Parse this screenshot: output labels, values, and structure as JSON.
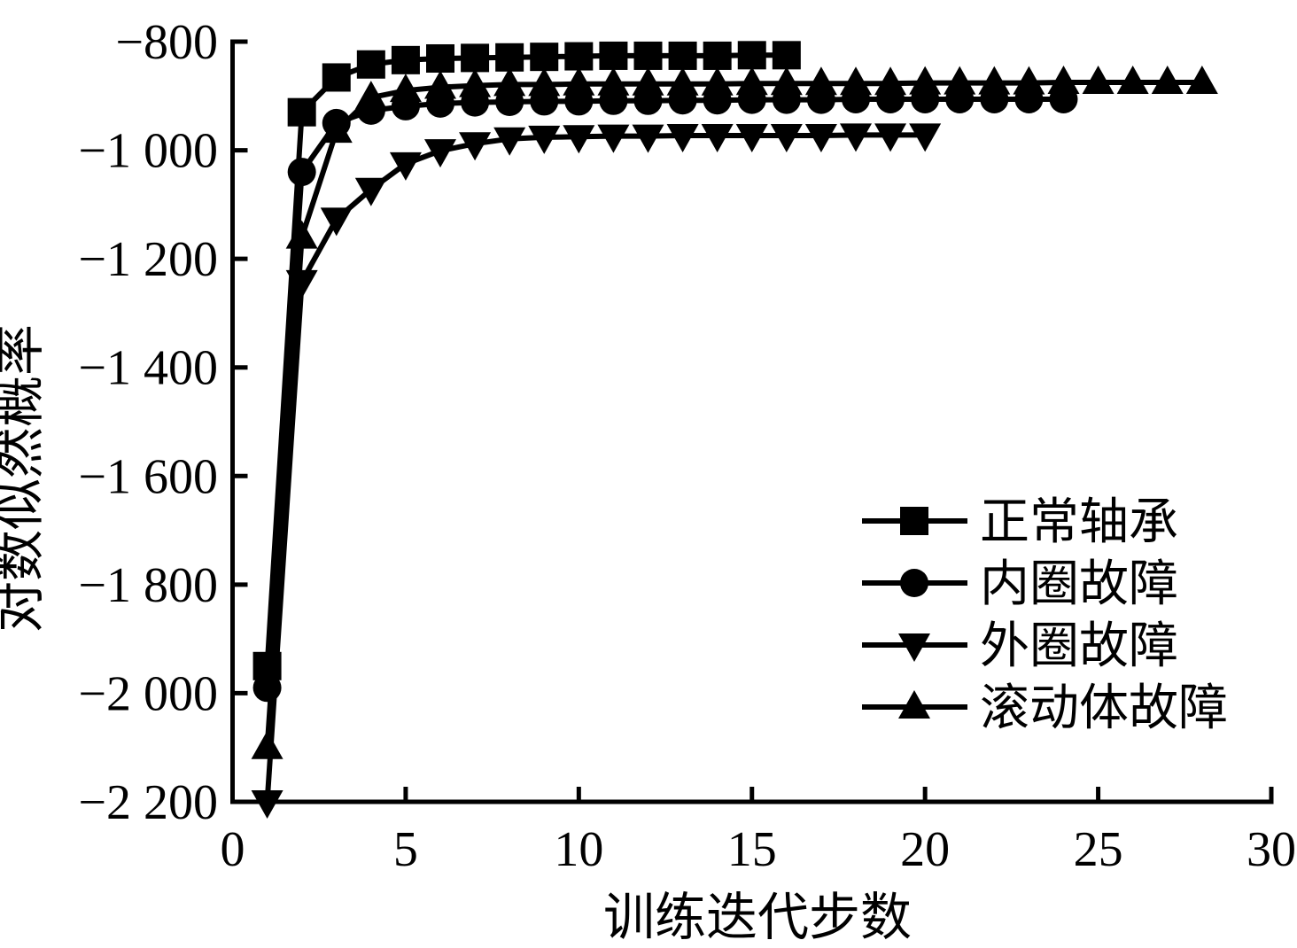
{
  "figure": {
    "background": "#ffffff",
    "foreground": "#000000"
  },
  "chart_data": {
    "type": "line",
    "title": "",
    "xlabel": "训练迭代步数",
    "ylabel": "对数似然概率",
    "xlim": [
      0,
      30
    ],
    "ylim": [
      -2200,
      -800
    ],
    "grid": false,
    "legend_position": "inside-right-center",
    "color": "#000000",
    "xticks": {
      "values": [
        0,
        5,
        10,
        15,
        20,
        25,
        30
      ],
      "labels": [
        "0",
        "5",
        "10",
        "15",
        "20",
        "25",
        "30"
      ]
    },
    "yticks": {
      "values": [
        -800,
        -1000,
        -1200,
        -1400,
        -1600,
        -1800,
        -2000,
        -2200
      ],
      "labels": [
        "−800",
        "−1 000",
        "−1 200",
        "−1 400",
        "−1 600",
        "−1 800",
        "−2 000",
        "−2 200"
      ]
    },
    "series": [
      {
        "key": "normal-bearing",
        "name": "正常轴承",
        "marker": "square",
        "x": [
          1,
          2,
          3,
          4,
          5,
          6,
          7,
          8,
          9,
          10,
          11,
          12,
          13,
          14,
          15,
          16
        ],
        "values": [
          -1950,
          -930,
          -866,
          -842,
          -834,
          -831,
          -830,
          -829,
          -828,
          -827,
          -826,
          -826,
          -826,
          -826,
          -825,
          -825
        ]
      },
      {
        "key": "inner-race-fault",
        "name": "内圈故障",
        "marker": "circle",
        "x": [
          1,
          2,
          3,
          4,
          5,
          6,
          7,
          8,
          9,
          10,
          11,
          12,
          13,
          14,
          15,
          16,
          17,
          18,
          19,
          20,
          21,
          22,
          23,
          24
        ],
        "values": [
          -1990,
          -1040,
          -950,
          -927,
          -919,
          -914,
          -912,
          -911,
          -910,
          -910,
          -909,
          -909,
          -908,
          -908,
          -907,
          -907,
          -907,
          -906,
          -906,
          -906,
          -906,
          -906,
          -906,
          -906
        ]
      },
      {
        "key": "outer-race-fault",
        "name": "外圈故障",
        "marker": "triangle-down",
        "x": [
          1,
          2,
          3,
          4,
          5,
          6,
          7,
          8,
          9,
          10,
          11,
          12,
          13,
          14,
          15,
          16,
          17,
          18,
          19,
          20
        ],
        "values": [
          -2200,
          -1242,
          -1127,
          -1072,
          -1025,
          -1001,
          -988,
          -979,
          -976,
          -975,
          -974,
          -974,
          -973,
          -973,
          -973,
          -973,
          -973,
          -972,
          -972,
          -972
        ]
      },
      {
        "key": "rolling-element-fault",
        "name": "滚动体故障",
        "marker": "triangle-up",
        "x": [
          1,
          2,
          3,
          4,
          5,
          6,
          7,
          8,
          9,
          10,
          11,
          12,
          13,
          14,
          15,
          16,
          17,
          18,
          19,
          20,
          21,
          22,
          23,
          24,
          25,
          26,
          27,
          28
        ],
        "values": [
          -2100,
          -1160,
          -965,
          -903,
          -890,
          -884,
          -881,
          -879,
          -879,
          -878,
          -878,
          -878,
          -878,
          -878,
          -877,
          -877,
          -877,
          -877,
          -877,
          -876,
          -876,
          -876,
          -876,
          -875,
          -875,
          -875,
          -875,
          -875
        ]
      }
    ]
  }
}
